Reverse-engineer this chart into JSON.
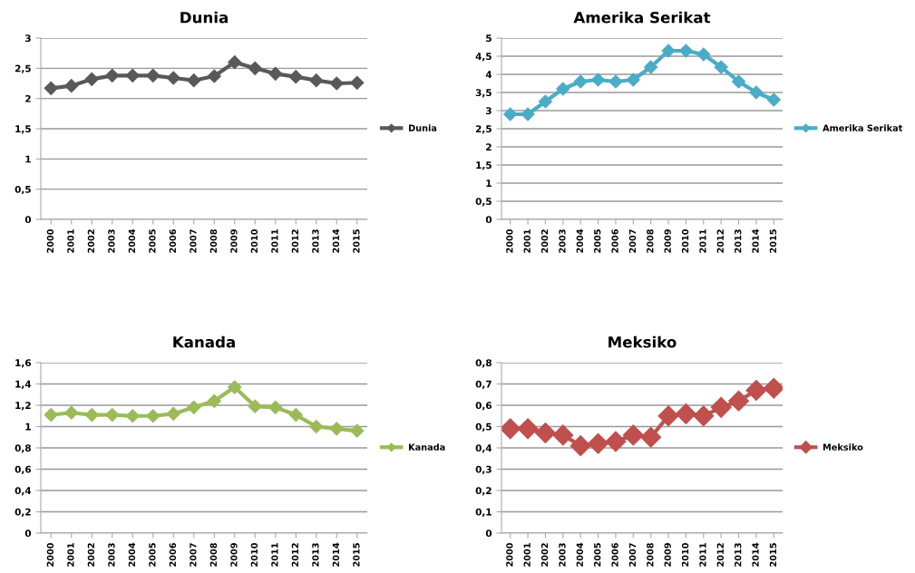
{
  "chart_data": [
    {
      "type": "line",
      "title": "Dunia",
      "categories": [
        "2000",
        "2001",
        "2002",
        "2003",
        "2004",
        "2005",
        "2006",
        "2007",
        "2008",
        "2009",
        "2010",
        "2011",
        "2012",
        "2013",
        "2014",
        "2015"
      ],
      "series": [
        {
          "name": "Dunia",
          "color": "#595959",
          "values": [
            2.17,
            2.21,
            2.32,
            2.38,
            2.38,
            2.38,
            2.34,
            2.3,
            2.37,
            2.6,
            2.5,
            2.41,
            2.36,
            2.3,
            2.25,
            2.26
          ]
        }
      ],
      "ylim": [
        0,
        3
      ],
      "yticks": [
        0,
        {
          "value": 0.5,
          "label": "0,5"
        },
        1,
        {
          "value": 1.5,
          "label": "1,5"
        },
        2,
        {
          "value": 2.5,
          "label": "2,5"
        },
        3
      ],
      "grid": "y",
      "legend": "right",
      "marker": "diamond",
      "line_style": "solid"
    },
    {
      "type": "line",
      "title": "Amerika Serikat",
      "categories": [
        "2000",
        "2001",
        "2002",
        "2003",
        "2004",
        "2005",
        "2006",
        "2007",
        "2008",
        "2009",
        "2010",
        "2011",
        "2012",
        "2013",
        "2014",
        "2015"
      ],
      "series": [
        {
          "name": "Amerika Serikat",
          "color": "#4bacc6",
          "values": [
            2.9,
            2.9,
            3.25,
            3.6,
            3.8,
            3.85,
            3.8,
            3.85,
            4.2,
            4.65,
            4.65,
            4.55,
            4.2,
            3.8,
            3.5,
            3.3
          ]
        }
      ],
      "ylim": [
        0,
        5
      ],
      "yticks": [
        0,
        {
          "value": 0.5,
          "label": "0,5"
        },
        1,
        {
          "value": 1.5,
          "label": "1,5"
        },
        2,
        {
          "value": 2.5,
          "label": "2,5"
        },
        3,
        {
          "value": 3.5,
          "label": "3,5"
        },
        4,
        {
          "value": 4.5,
          "label": "4,5"
        },
        5
      ],
      "grid": "y",
      "legend": "right",
      "marker": "diamond",
      "line_style": "solid"
    },
    {
      "type": "line",
      "title": "Kanada",
      "categories": [
        "2000",
        "2001",
        "2002",
        "2003",
        "2004",
        "2005",
        "2006",
        "2007",
        "2008",
        "2009",
        "2010",
        "2011",
        "2012",
        "2013",
        "2014",
        "2015"
      ],
      "series": [
        {
          "name": "Kanada",
          "color": "#9bbb59",
          "values": [
            1.11,
            1.13,
            1.11,
            1.11,
            1.1,
            1.1,
            1.12,
            1.18,
            1.24,
            1.37,
            1.19,
            1.18,
            1.11,
            1.0,
            0.98,
            0.96
          ]
        }
      ],
      "ylim": [
        0,
        1.6
      ],
      "yticks": [
        0,
        {
          "value": 0.2,
          "label": "0,2"
        },
        {
          "value": 0.4,
          "label": "0,4"
        },
        {
          "value": 0.6,
          "label": "0,6"
        },
        {
          "value": 0.8,
          "label": "0,8"
        },
        1,
        {
          "value": 1.2,
          "label": "1,2"
        },
        {
          "value": 1.4,
          "label": "1,4"
        },
        {
          "value": 1.6,
          "label": "1,6"
        }
      ],
      "grid": "y",
      "legend": "right",
      "marker": "diamond",
      "line_style": "solid"
    },
    {
      "type": "line",
      "title": "Meksiko",
      "categories": [
        "2000",
        "2001",
        "2002",
        "2003",
        "2004",
        "2005",
        "2006",
        "2007",
        "2008",
        "2009",
        "2010",
        "2011",
        "2012",
        "2013",
        "2014",
        "2015"
      ],
      "series": [
        {
          "name": "Meksiko",
          "color": "#c0504d",
          "values": [
            0.49,
            0.49,
            0.47,
            0.46,
            0.41,
            0.42,
            0.43,
            0.46,
            0.45,
            0.55,
            0.56,
            0.55,
            0.59,
            0.62,
            0.67,
            0.68
          ]
        }
      ],
      "ylim": [
        0,
        0.8
      ],
      "yticks": [
        0,
        {
          "value": 0.1,
          "label": "0,1"
        },
        {
          "value": 0.2,
          "label": "0,2"
        },
        {
          "value": 0.3,
          "label": "0,3"
        },
        {
          "value": 0.4,
          "label": "0,4"
        },
        {
          "value": 0.5,
          "label": "0,5"
        },
        {
          "value": 0.6,
          "label": "0,6"
        },
        {
          "value": 0.7,
          "label": "0,7"
        },
        {
          "value": 0.8,
          "label": "0,8"
        }
      ],
      "grid": "y",
      "legend": "right",
      "marker": "diamond",
      "line_style": "solid"
    }
  ]
}
